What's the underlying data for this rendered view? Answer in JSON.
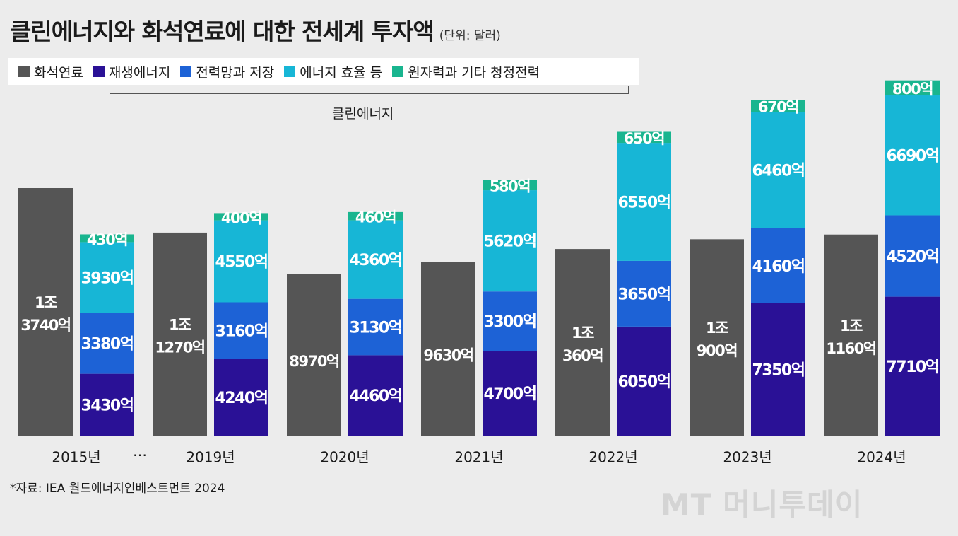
{
  "title": "클린에너지와 화석연료에 대한 전세계 투자액",
  "unit": "(단위: 달러)",
  "legend": [
    {
      "label": "화석연료",
      "color": "#555555"
    },
    {
      "label": "재생에너지",
      "color": "#2a1196"
    },
    {
      "label": "전력망과 저장",
      "color": "#1d62d6"
    },
    {
      "label": "에너지 효율 등",
      "color": "#17b6d6"
    },
    {
      "label": "원자력과 기타 청정전력",
      "color": "#19b58f"
    }
  ],
  "clean_energy_label": "클린에너지",
  "ellipsis": "…",
  "source": "*자료: IEA 월드에너지인베스트먼트 2024",
  "watermark": "MT 머니투데이",
  "chart_data": {
    "type": "bar",
    "categories": [
      "2015년",
      "2019년",
      "2020년",
      "2021년",
      "2022년",
      "2023년",
      "2024년"
    ],
    "fossil": {
      "values": [
        13740,
        11270,
        8970,
        9630,
        10360,
        10900,
        11160
      ],
      "labels": [
        [
          "1조",
          "3740억"
        ],
        [
          "1조",
          "1270억"
        ],
        [
          "8970억"
        ],
        [
          "9630억"
        ],
        [
          "1조",
          "360억"
        ],
        [
          "1조",
          "900억"
        ],
        [
          "1조",
          "1160억"
        ]
      ]
    },
    "clean_series": [
      {
        "name": "재생에너지",
        "values": [
          3430,
          4240,
          4460,
          4700,
          6050,
          7350,
          7710
        ],
        "labels": [
          "3430억",
          "4240억",
          "4460억",
          "4700억",
          "6050억",
          "7350억",
          "7710억"
        ]
      },
      {
        "name": "전력망과 저장",
        "values": [
          3380,
          3160,
          3130,
          3300,
          3650,
          4160,
          4520
        ],
        "labels": [
          "3380억",
          "3160억",
          "3130억",
          "3300억",
          "3650억",
          "4160억",
          "4520억"
        ]
      },
      {
        "name": "에너지 효율 등",
        "values": [
          3930,
          4550,
          4360,
          5620,
          6550,
          6460,
          6690
        ],
        "labels": [
          "3930억",
          "4550억",
          "4360억",
          "5620억",
          "6550억",
          "6460억",
          "6690억"
        ]
      },
      {
        "name": "원자력과 기타 청정전력",
        "values": [
          430,
          400,
          460,
          580,
          650,
          670,
          800
        ],
        "labels": [
          "430억",
          "400억",
          "460억",
          "580억",
          "650억",
          "670억",
          "800억"
        ]
      }
    ],
    "colors": {
      "fossil": "#555555",
      "renewable": "#2a1196",
      "grid": "#1d62d6",
      "efficiency": "#17b6d6",
      "nuclear": "#19b58f"
    }
  }
}
